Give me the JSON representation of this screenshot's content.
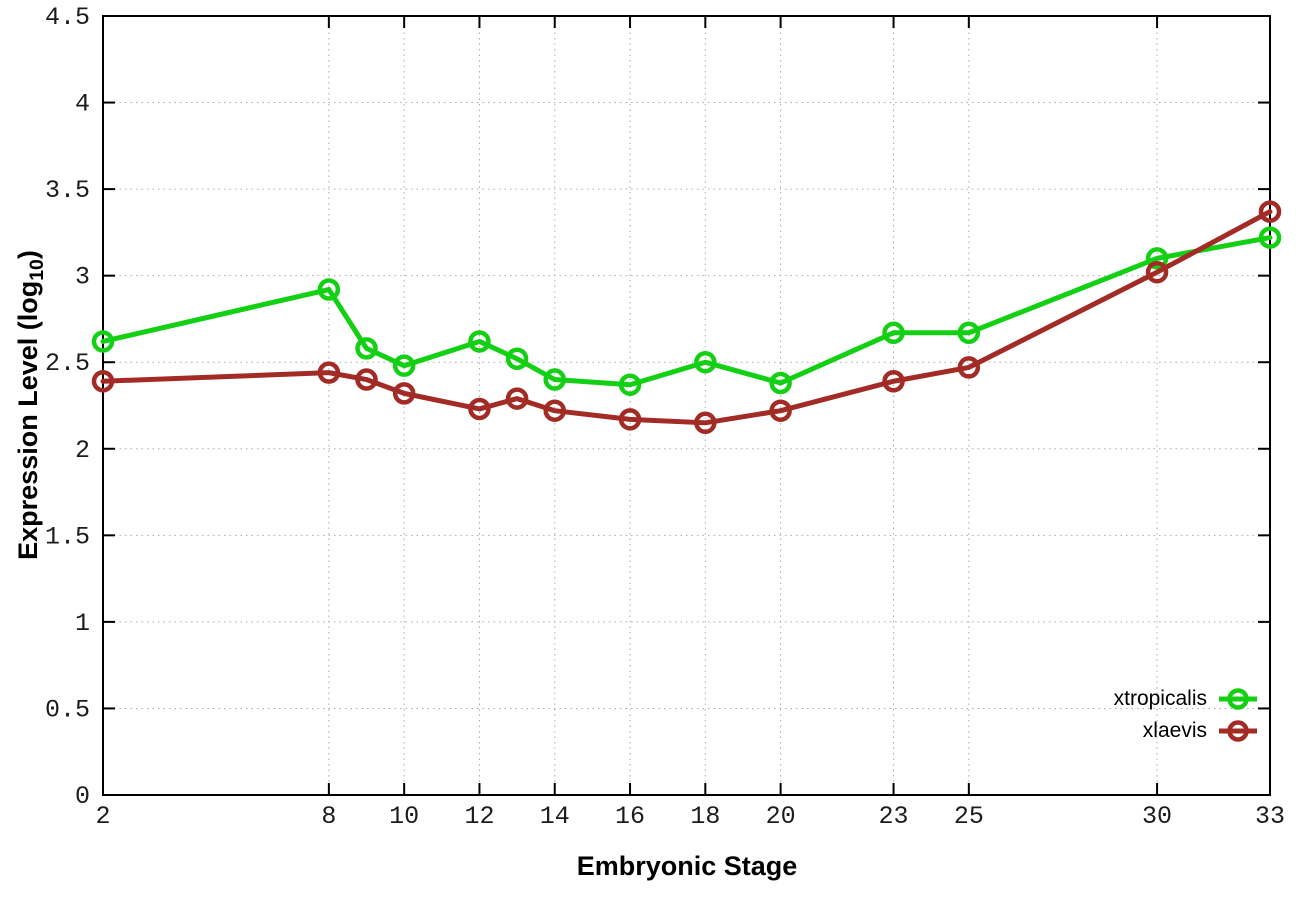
{
  "chart_data": {
    "type": "line",
    "title": "",
    "xlabel": "Embryonic Stage",
    "ylabel": {
      "text": "Expression Level (log",
      "sub": "10",
      "suffix": ")"
    },
    "x": [
      2,
      8,
      9,
      10,
      12,
      13,
      14,
      16,
      18,
      20,
      23,
      25,
      30,
      33
    ],
    "series": [
      {
        "name": "xtropicalis",
        "color": "#14d014",
        "values": [
          2.62,
          2.92,
          2.58,
          2.48,
          2.62,
          2.52,
          2.4,
          2.37,
          2.5,
          2.38,
          2.67,
          2.67,
          3.1,
          3.22
        ]
      },
      {
        "name": "xlaevis",
        "color": "#a32b25",
        "values": [
          2.39,
          2.44,
          2.4,
          2.32,
          2.23,
          2.29,
          2.22,
          2.17,
          2.15,
          2.22,
          2.39,
          2.47,
          3.02,
          3.37
        ]
      }
    ],
    "xlim": [
      2,
      33
    ],
    "ylim": [
      0,
      4.5
    ],
    "x_ticks": [
      2,
      8,
      10,
      12,
      14,
      16,
      18,
      20,
      23,
      25,
      30,
      33
    ],
    "x_tick_labels": [
      "2",
      "8",
      "10",
      "12",
      "14",
      "16",
      "18",
      "20",
      "23",
      "25",
      "30",
      "33"
    ],
    "y_ticks": [
      0,
      0.5,
      1,
      1.5,
      2,
      2.5,
      3,
      3.5,
      4,
      4.5
    ],
    "y_tick_labels": [
      "0",
      "0.5",
      "1",
      "1.5",
      "2",
      "2.5",
      "3",
      "3.5",
      "4",
      "4.5"
    ],
    "grid": true,
    "legend_position": "bottom-right",
    "colors": {
      "grid": "#ababab",
      "axis": "#000000",
      "background": "#ffffff",
      "tick_text": "#1c1c1c"
    }
  }
}
